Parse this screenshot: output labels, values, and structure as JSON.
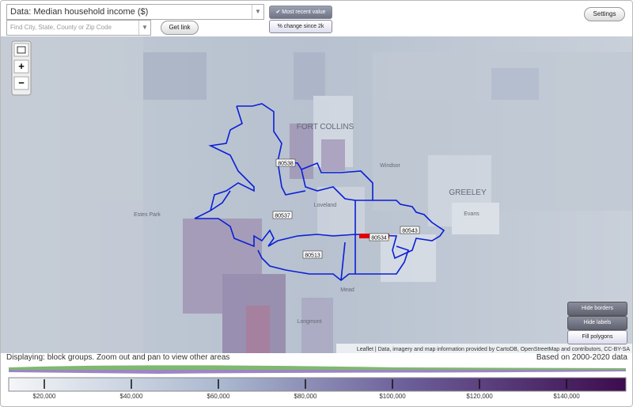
{
  "toolbar": {
    "data_select": "Data: Median household income ($)",
    "search_placeholder": "Find City, State, County or Zip Code",
    "get_link": "Get link",
    "most_recent": "Most recent value",
    "change_since": "% change since 2k",
    "settings": "Settings"
  },
  "map": {
    "zoom_in": "+",
    "zoom_out": "−",
    "places": [
      "FORT COLLINS",
      "Windsor",
      "GREELEY",
      "Loveland",
      "Estes Park",
      "Evans",
      "Mead",
      "Longmont"
    ],
    "zip_labels": [
      "80538",
      "80537",
      "80534",
      "80543",
      "80513"
    ],
    "buttons": [
      "Hide borders",
      "Hide labels",
      "Fill polygons"
    ],
    "attribution": "Leaflet | Data, imagery and map information provided by CartoDB, OpenStreetMap and contributors, CC-BY-SA"
  },
  "status": {
    "left": "Displaying: block groups. Zoom out and pan to view other areas",
    "right": "Based on 2000-2020 data"
  },
  "legend": {
    "labels": [
      "$20,000",
      "$40,000",
      "$60,000",
      "$80,000",
      "$100,000",
      "$120,000",
      "$140,000"
    ]
  }
}
